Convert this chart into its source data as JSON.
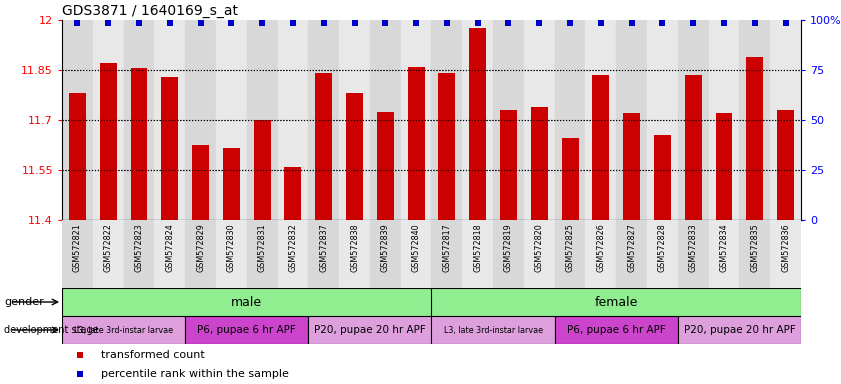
{
  "title": "GDS3871 / 1640169_s_at",
  "samples": [
    "GSM572821",
    "GSM572822",
    "GSM572823",
    "GSM572824",
    "GSM572829",
    "GSM572830",
    "GSM572831",
    "GSM572832",
    "GSM572837",
    "GSM572838",
    "GSM572839",
    "GSM572840",
    "GSM572817",
    "GSM572818",
    "GSM572819",
    "GSM572820",
    "GSM572825",
    "GSM572826",
    "GSM572827",
    "GSM572828",
    "GSM572833",
    "GSM572834",
    "GSM572835",
    "GSM572836"
  ],
  "values": [
    11.78,
    11.87,
    11.855,
    11.83,
    11.625,
    11.615,
    11.7,
    11.56,
    11.84,
    11.78,
    11.725,
    11.86,
    11.84,
    11.975,
    11.73,
    11.74,
    11.645,
    11.835,
    11.72,
    11.655,
    11.835,
    11.72,
    11.89,
    11.73
  ],
  "ymin": 11.4,
  "ymax": 12.0,
  "left_yticks": [
    11.4,
    11.55,
    11.7,
    11.85,
    12
  ],
  "right_yticks_pct": [
    0,
    25,
    50,
    75,
    100
  ],
  "bar_color": "#cc0000",
  "pct_color": "#0000cc",
  "gender_segments": [
    {
      "label": "male",
      "start": 0,
      "end": 12,
      "color": "#90EE90"
    },
    {
      "label": "female",
      "start": 12,
      "end": 24,
      "color": "#90EE90"
    }
  ],
  "dev_segments": [
    {
      "label": "L3, late 3rd-instar larvae",
      "start": 0,
      "end": 4,
      "color": "#DDA0DD"
    },
    {
      "label": "P6, pupae 6 hr APF",
      "start": 4,
      "end": 8,
      "color": "#CC44CC"
    },
    {
      "label": "P20, pupae 20 hr APF",
      "start": 8,
      "end": 12,
      "color": "#DDA0DD"
    },
    {
      "label": "L3, late 3rd-instar larvae",
      "start": 12,
      "end": 16,
      "color": "#DDA0DD"
    },
    {
      "label": "P6, pupae 6 hr APF",
      "start": 16,
      "end": 20,
      "color": "#CC44CC"
    },
    {
      "label": "P20, pupae 20 hr APF",
      "start": 20,
      "end": 24,
      "color": "#DDA0DD"
    }
  ],
  "legend": [
    {
      "color": "#cc0000",
      "label": "transformed count"
    },
    {
      "color": "#0000cc",
      "label": "percentile rank within the sample"
    }
  ]
}
